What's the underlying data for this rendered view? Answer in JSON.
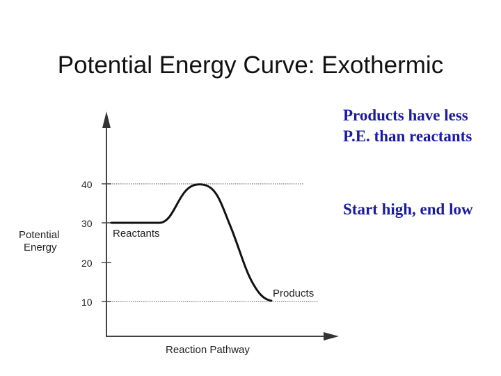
{
  "slide": {
    "title": "Potential Energy Curve:  Exothermic",
    "notes": [
      "Products have less P.E. than reactants",
      "Start high, end low"
    ]
  },
  "diagram": {
    "y_axis_label_line1": "Potential",
    "y_axis_label_line2": "Energy",
    "x_axis_label": "Reaction Pathway",
    "tick_labels": [
      "40",
      "30",
      "20",
      "10"
    ],
    "reactants_label": "Reactants",
    "products_label": "Products",
    "reactant_energy": 30,
    "peak_energy": 40,
    "product_energy": 10
  }
}
